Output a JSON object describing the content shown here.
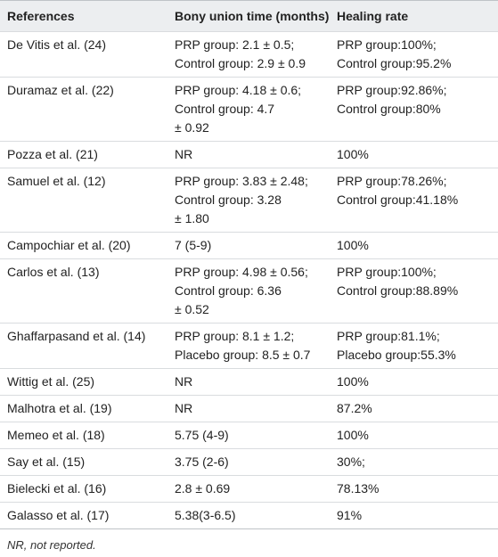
{
  "table": {
    "header": [
      "References",
      "Bony union time (months)",
      "Healing rate"
    ],
    "rows": [
      [
        [
          "De Vitis et al. (24)"
        ],
        [
          "PRP group: 2.1 ± 0.5;",
          "Control group: 2.9 ± 0.9"
        ],
        [
          "PRP group:100%;",
          "Control group:95.2%"
        ]
      ],
      [
        [
          "Duramaz et al. (22)"
        ],
        [
          "PRP group: 4.18 ± 0.6;",
          "Control group: 4.7",
          "± 0.92"
        ],
        [
          "PRP group:92.86%;",
          "Control group:80%"
        ]
      ],
      [
        [
          "Pozza et al. (21)"
        ],
        [
          "NR"
        ],
        [
          "100%"
        ]
      ],
      [
        [
          "Samuel et al. (12)"
        ],
        [
          "PRP group: 3.83 ± 2.48;",
          "Control group: 3.28",
          "± 1.80"
        ],
        [
          "PRP group:78.26%;",
          "Control group:41.18%"
        ]
      ],
      [
        [
          "Campochiar et al. (20)"
        ],
        [
          "7 (5-9)"
        ],
        [
          "100%"
        ]
      ],
      [
        [
          "Carlos et al. (13)"
        ],
        [
          "PRP group: 4.98 ± 0.56;",
          "Control group: 6.36",
          "± 0.52"
        ],
        [
          "PRP group:100%;",
          "Control group:88.89%"
        ]
      ],
      [
        [
          "Ghaffarpasand et al. (14)"
        ],
        [
          "PRP group: 8.1 ± 1.2;",
          "Placebo group: 8.5 ± 0.7"
        ],
        [
          "PRP group:81.1%;",
          "Placebo group:55.3%"
        ]
      ],
      [
        [
          "Wittig et al. (25)"
        ],
        [
          "NR"
        ],
        [
          "100%"
        ]
      ],
      [
        [
          "Malhotra et al. (19)"
        ],
        [
          "NR"
        ],
        [
          "87.2%"
        ]
      ],
      [
        [
          "Memeo et al. (18)"
        ],
        [
          "5.75 (4-9)"
        ],
        [
          "100%"
        ]
      ],
      [
        [
          "Say et al. (15)"
        ],
        [
          "3.75 (2-6)"
        ],
        [
          "30%;"
        ]
      ],
      [
        [
          "Bielecki et al. (16)"
        ],
        [
          "2.8 ± 0.69"
        ],
        [
          "78.13%"
        ]
      ],
      [
        [
          "Galasso et al. (17)"
        ],
        [
          "5.38(3-6.5)"
        ],
        [
          "91%"
        ]
      ]
    ],
    "footnote": "NR, not reported."
  }
}
